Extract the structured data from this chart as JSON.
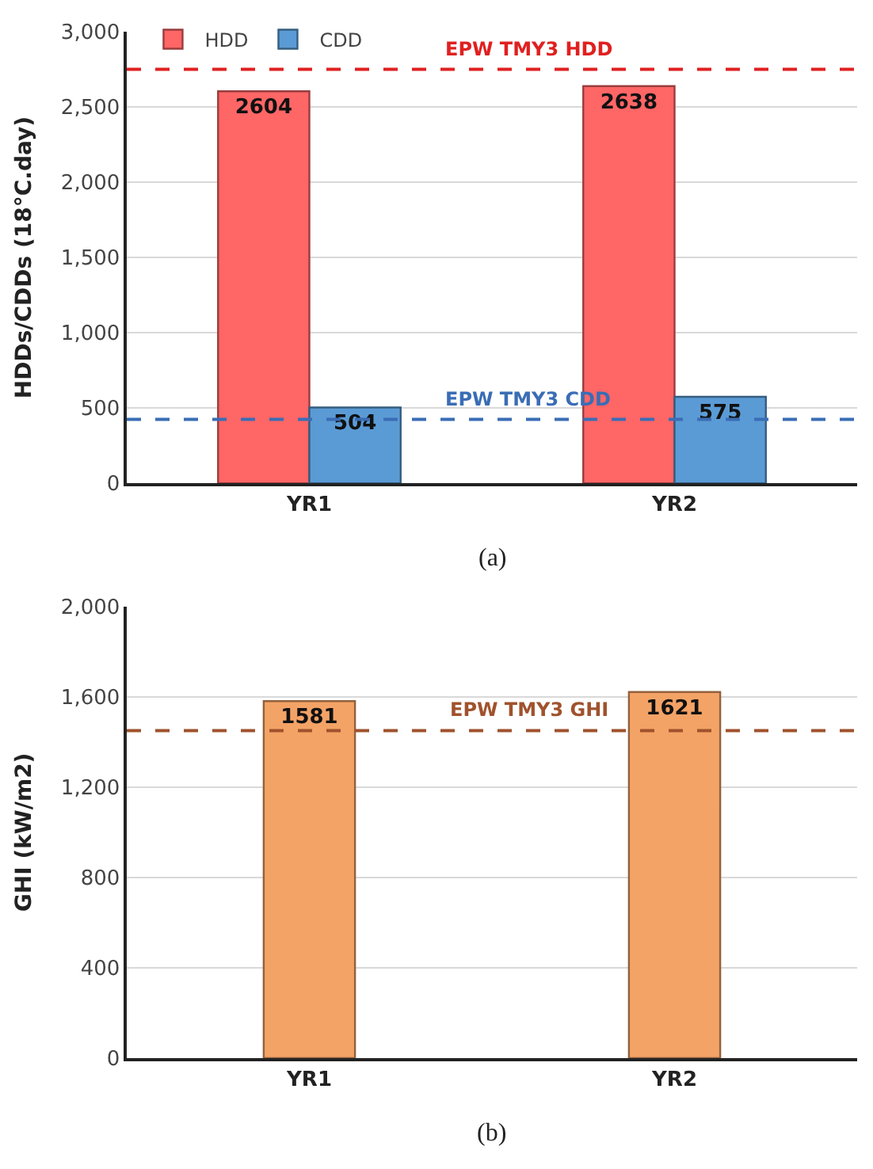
{
  "chart_data": [
    {
      "type": "bar",
      "ylabel": "HDDs/CDDs (18°C.day)",
      "categories": [
        "YR1",
        "YR2"
      ],
      "series": [
        {
          "name": "HDD",
          "color": "#ff6666",
          "values": [
            2604,
            2638
          ]
        },
        {
          "name": "CDD",
          "color": "#5b9bd5",
          "values": [
            504,
            575
          ]
        }
      ],
      "ylim": [
        0,
        3000
      ],
      "yticks": [
        0,
        {
          "value": 500,
          "label": "500"
        },
        {
          "value": 1000,
          "label": "1,000"
        },
        {
          "value": 1500,
          "label": "1,500"
        },
        {
          "value": 2000,
          "label": "2,000"
        },
        {
          "value": 2500,
          "label": "2,500"
        },
        {
          "value": 3000,
          "label": "3,000"
        }
      ],
      "ref_lines": [
        {
          "axis": "y",
          "value": 2750,
          "label": "EPW TMY3 HDD",
          "color": "#e02020",
          "line_style": "dashed"
        },
        {
          "axis": "y",
          "value": 425,
          "label": "EPW TMY3 CDD",
          "color": "#3a6db5",
          "line_style": "dashed"
        }
      ],
      "data_labels": true,
      "grid": "y",
      "legend": "top left",
      "annotations": [
        "(a)"
      ]
    },
    {
      "type": "bar",
      "ylabel": "GHI (kW/m2)",
      "categories": [
        "YR1",
        "YR2"
      ],
      "series": [
        {
          "color": "#f4a366",
          "values": [
            1581,
            1621
          ]
        }
      ],
      "ylim": [
        0,
        2000
      ],
      "yticks": [
        0,
        400,
        800,
        {
          "value": 1200,
          "label": "1,200"
        },
        {
          "value": 1600,
          "label": "1,600"
        },
        {
          "value": 2000,
          "label": "2,000"
        }
      ],
      "ref_lines": [
        {
          "axis": "y",
          "value": 1450,
          "label": "EPW TMY3 GHI",
          "color": "#a0522d",
          "line_style": "dashed"
        }
      ],
      "data_labels": true,
      "grid": "y",
      "annotations": [
        "(b)"
      ]
    }
  ]
}
